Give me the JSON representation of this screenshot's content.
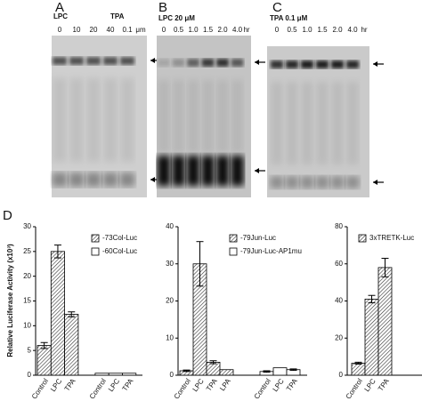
{
  "panels": [
    {
      "label": "A",
      "treatment": [
        "LPC",
        "TPA"
      ],
      "lanes": [
        "0",
        "10",
        "20",
        "40",
        "0.1"
      ],
      "unit": "μm"
    },
    {
      "label": "B",
      "treatment": [
        "LPC 20 μM"
      ],
      "lanes": [
        "0",
        "0.5",
        "1.0",
        "1.5",
        "2.0",
        "4.0"
      ],
      "unit": "hr"
    },
    {
      "label": "C",
      "treatment": [
        "TPA 0.1 μM"
      ],
      "lanes": [
        "0",
        "0.5",
        "1.0",
        "1.5",
        "2.0",
        "4.0"
      ],
      "unit": "hr"
    }
  ],
  "figure_label": "D",
  "chart_data": [
    {
      "type": "bar",
      "ylabel": "Relative Luciferase Activity (x10³)",
      "categories": [
        "Control",
        "LPC",
        "TPA",
        "Control",
        "LPC",
        "TPA"
      ],
      "series": [
        {
          "name": "-73Col-Luc",
          "color": "#ffffff",
          "hatch": true,
          "values": [
            6,
            25,
            12.3,
            null,
            null,
            null
          ],
          "errors": [
            0.6,
            1.3,
            0.5,
            null,
            null,
            null
          ]
        },
        {
          "name": "-60Col-Luc",
          "color": "#ffffff",
          "hatch": false,
          "values": [
            null,
            null,
            null,
            0.4,
            0.4,
            0.4
          ],
          "errors": [
            null,
            null,
            null,
            null,
            null,
            null
          ]
        }
      ],
      "ylim": [
        0,
        30
      ],
      "yticks": [
        0,
        5,
        10,
        15,
        20,
        25,
        30
      ]
    },
    {
      "type": "bar",
      "categories": [
        "Control",
        "LPC",
        "TPA",
        "LPA",
        "Control",
        "LPC",
        "TPA"
      ],
      "series": [
        {
          "name": "-79Jun-Luc",
          "color": "#ffffff",
          "hatch": true,
          "values": [
            1.2,
            30,
            3.5,
            1.5,
            null,
            null,
            null
          ],
          "errors": [
            0.2,
            6,
            0.4,
            null,
            null,
            null,
            null
          ]
        },
        {
          "name": "-79Jun-Luc-AP1mu",
          "color": "#ffffff",
          "hatch": false,
          "values": [
            null,
            null,
            null,
            null,
            1,
            2,
            1.5
          ],
          "errors": [
            null,
            null,
            null,
            null,
            0.2,
            null,
            0.2
          ]
        }
      ],
      "ylim": [
        0,
        40
      ],
      "yticks": [
        0,
        10,
        20,
        30,
        40
      ]
    },
    {
      "type": "bar",
      "categories": [
        "Control",
        "LPC",
        "TPA"
      ],
      "series": [
        {
          "name": "3xTRETK-Luc",
          "color": "#ffffff",
          "hatch": true,
          "values": [
            6.5,
            41,
            58
          ],
          "errors": [
            0.5,
            2,
            5
          ]
        }
      ],
      "ylim": [
        0,
        80
      ],
      "yticks": [
        0,
        20,
        40,
        60,
        80
      ]
    }
  ]
}
